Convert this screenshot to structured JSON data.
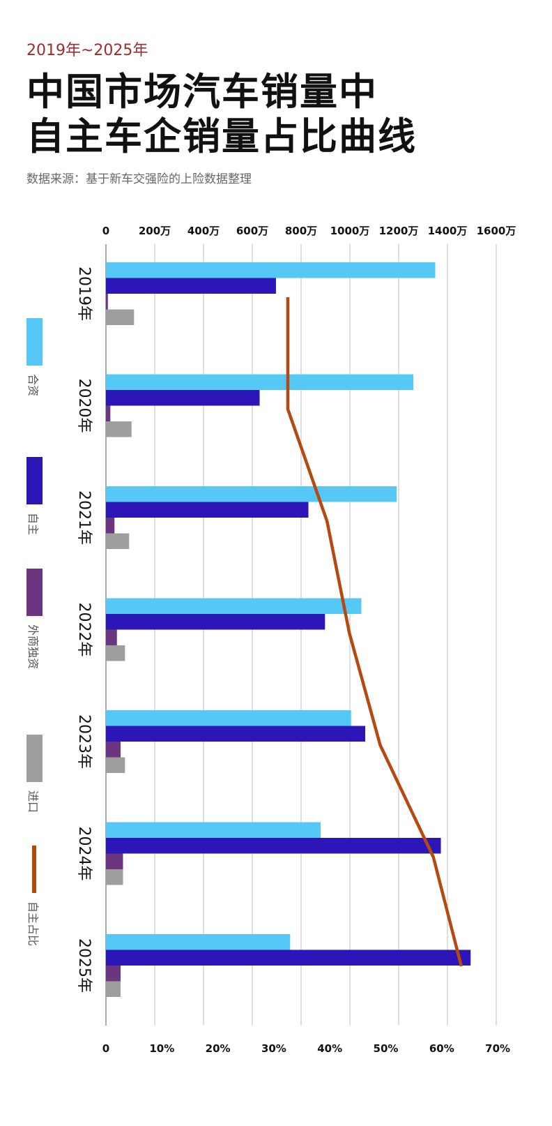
{
  "header": {
    "period": "2019年~2025年",
    "title_line1": "中国市场汽车销量中",
    "title_line2": "自主车企销量占比曲线",
    "source": "数据来源：基于新车交强险的上险数据整理"
  },
  "chart_data": {
    "type": "bar",
    "orientation": "horizontal",
    "categories": [
      "2019年",
      "2020年",
      "2021年",
      "2022年",
      "2023年",
      "2024年",
      "2025年"
    ],
    "top_axis": {
      "unit": "万",
      "range": [
        0,
        1600
      ],
      "ticks": [
        "0",
        "200万",
        "400万",
        "600万",
        "800万",
        "1000万",
        "1200万",
        "1400万",
        "1600万"
      ]
    },
    "bottom_axis": {
      "unit": "%",
      "range": [
        0,
        70
      ],
      "ticks": [
        "0",
        "10%",
        "20%",
        "30%",
        "40%",
        "50%",
        "60%",
        "70%"
      ]
    },
    "grid": true,
    "legend_position": "left",
    "series": [
      {
        "name": "合资",
        "color": "#55c8f5",
        "values": [
          1350,
          1260,
          1192,
          1047,
          1005,
          880,
          755
        ]
      },
      {
        "name": "自主",
        "color": "#2c16b8",
        "values": [
          697,
          630,
          830,
          898,
          1063,
          1373,
          1495
        ]
      },
      {
        "name": "外商独资",
        "color": "#6b3580",
        "values": [
          8,
          18,
          35,
          45,
          60,
          70,
          60
        ]
      },
      {
        "name": "进口",
        "color": "#9e9e9e",
        "values": [
          115,
          105,
          95,
          78,
          78,
          70,
          60
        ]
      }
    ],
    "line_series": {
      "name": "自主占比",
      "color": "#b5490f",
      "axis": "bottom",
      "values": [
        32.5,
        32.5,
        39.5,
        43.5,
        49.0,
        58.5,
        63.5
      ]
    }
  }
}
